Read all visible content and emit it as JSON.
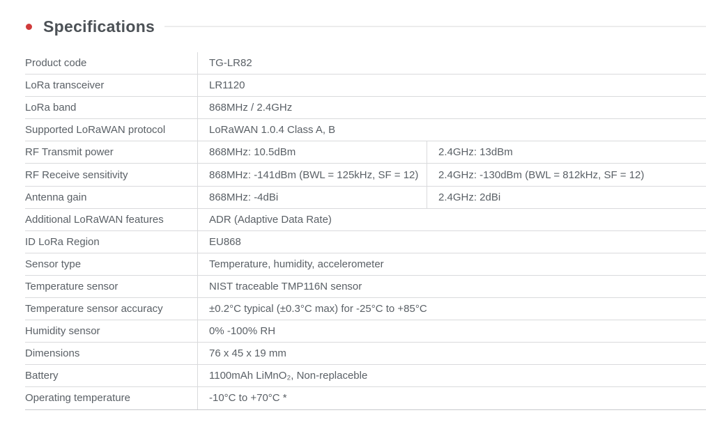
{
  "heading": {
    "title": "Specifications"
  },
  "colors": {
    "bullet_red": "#d03b3b",
    "heading_text": "#4c5156",
    "body_text": "#5a6066",
    "row_line": "#d9dadc",
    "header_rule": "#ececec"
  },
  "table": {
    "rows": [
      {
        "label": "Product code",
        "values": [
          "TG-LR82"
        ]
      },
      {
        "label": "LoRa transceiver",
        "values": [
          "LR1120"
        ]
      },
      {
        "label": "LoRa band",
        "values": [
          "868MHz / 2.4GHz"
        ]
      },
      {
        "label": "Supported LoRaWAN protocol",
        "values": [
          "LoRaWAN 1.0.4 Class A, B"
        ]
      },
      {
        "label": "RF Transmit power",
        "values": [
          "868MHz: 10.5dBm",
          "2.4GHz: 13dBm"
        ]
      },
      {
        "label": "RF Receive sensitivity",
        "values": [
          "868MHz: -141dBm (BWL = 125kHz, SF = 12)",
          "2.4GHz: -130dBm (BWL = 812kHz, SF = 12)"
        ]
      },
      {
        "label": "Antenna gain",
        "values": [
          "868MHz: -4dBi",
          "2.4GHz: 2dBi"
        ]
      },
      {
        "label": "Additional LoRaWAN features",
        "values": [
          "ADR (Adaptive Data Rate)"
        ]
      },
      {
        "label": "ID LoRa Region",
        "values": [
          "EU868"
        ]
      },
      {
        "label": "Sensor type",
        "values": [
          "Temperature, humidity, accelerometer"
        ]
      },
      {
        "label": "Temperature sensor",
        "values": [
          "NIST traceable TMP116N sensor"
        ]
      },
      {
        "label": "Temperature sensor accuracy",
        "values": [
          "±0.2°C typical (±0.3°C max) for -25°C to +85°C"
        ]
      },
      {
        "label": "Humidity sensor",
        "values": [
          "0% -100% RH"
        ]
      },
      {
        "label": "Dimensions",
        "values": [
          "76 x 45 x 19 mm"
        ]
      },
      {
        "label": "Battery",
        "values": [
          "1100mAh LiMnO₂, Non-replaceble"
        ]
      },
      {
        "label": "Operating temperature",
        "values": [
          "-10°C to +70°C *"
        ]
      }
    ]
  }
}
